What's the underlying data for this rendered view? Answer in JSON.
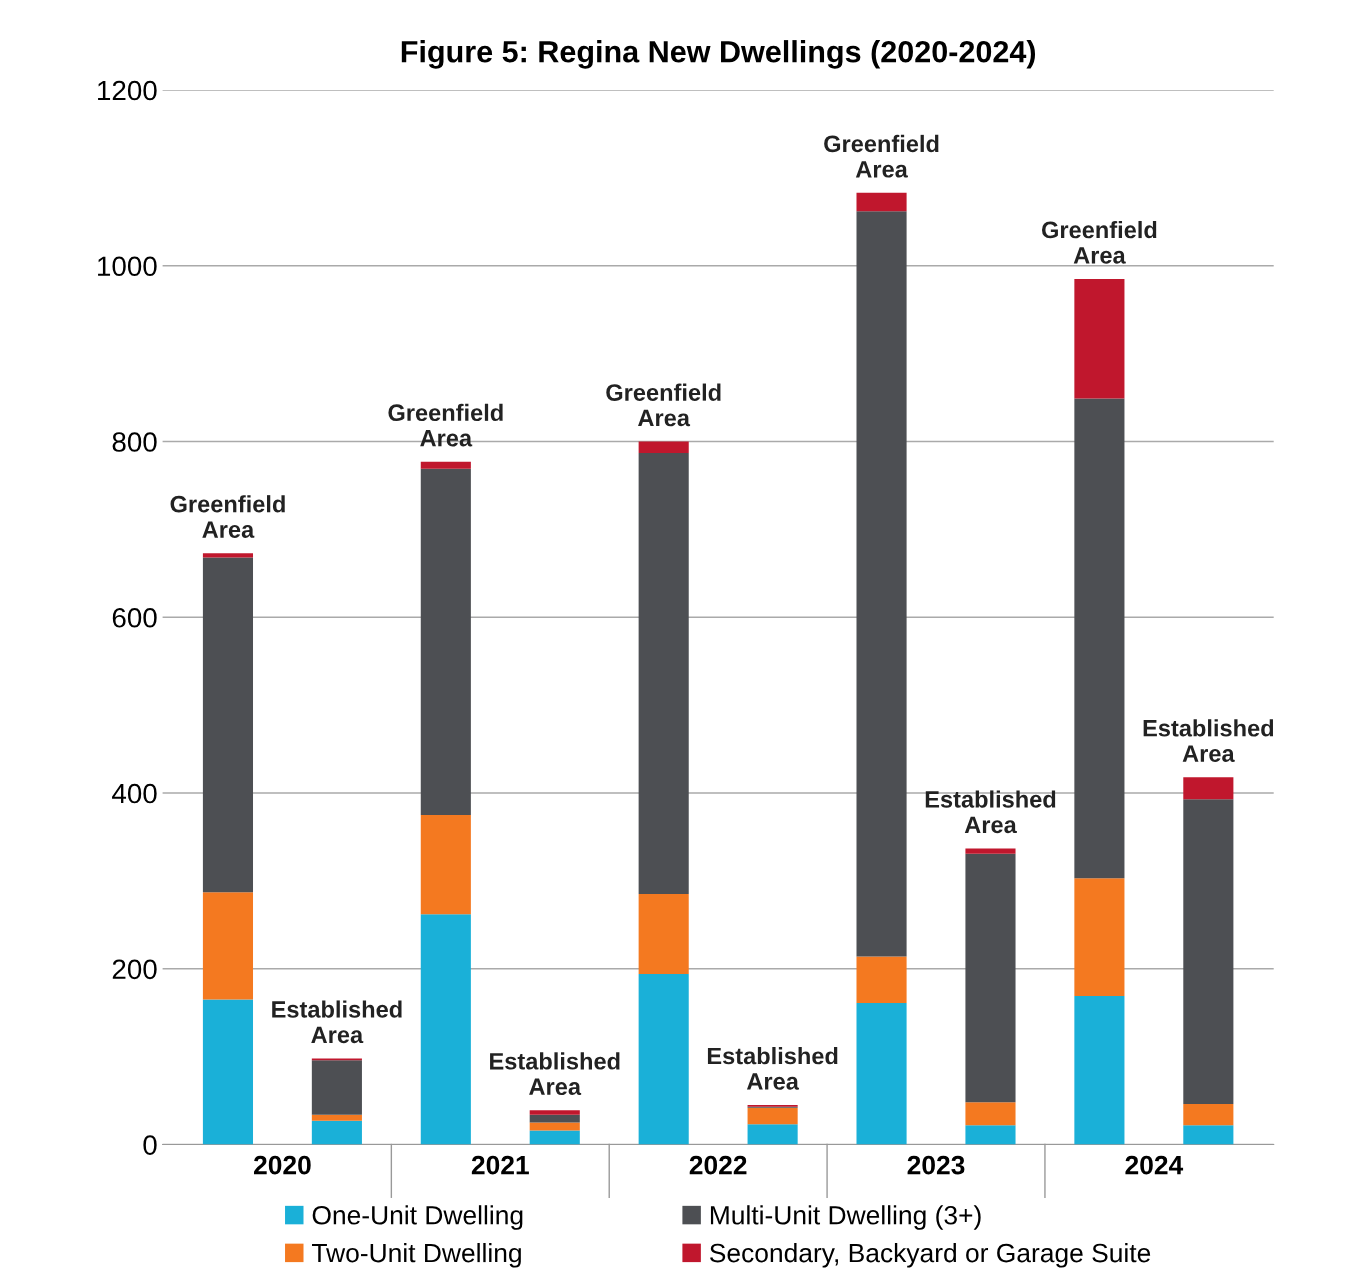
{
  "chart_data": {
    "type": "bar",
    "title": "Figure 5: Regina New Dwellings (2020-2024)",
    "categories": [
      "Greenfield\nArea",
      "Established\nArea",
      "Greenfield\nArea",
      "Established\nArea",
      "Greenfield\nArea",
      "Established\nArea",
      "Greenfield\nArea",
      "Established\nArea",
      "Greenfield\nArea",
      "Established\nArea"
    ],
    "stacked": true,
    "series": [
      {
        "name": "One-Unit Dwelling",
        "color": "#1ab0d8",
        "values": [
          165,
          27,
          262,
          16,
          194,
          23,
          161,
          22,
          169,
          22
        ]
      },
      {
        "name": "Two-Unit Dwelling",
        "color": "#f47920",
        "values": [
          122,
          7,
          113,
          9,
          91,
          19,
          53,
          26,
          134,
          24
        ]
      },
      {
        "name": "Multi-Unit Dwelling (3+)",
        "color": "#4d4f53",
        "values": [
          381,
          62,
          394,
          9,
          502,
          1,
          848,
          283,
          546,
          347
        ]
      },
      {
        "name": "Secondary, Backyard or Garage Suite",
        "color": "#c0172d",
        "values": [
          5,
          2,
          8,
          5,
          13,
          2,
          21,
          6,
          136,
          25
        ]
      }
    ],
    "ylim": [
      0,
      1200
    ],
    "yticks": [
      0,
      200,
      400,
      600,
      800,
      1000,
      1200
    ],
    "grid": "y",
    "legend": "bottom",
    "tick_labels": "y",
    "annotations": [
      "2020",
      "2021",
      "2022",
      "2023",
      "2024"
    ]
  }
}
